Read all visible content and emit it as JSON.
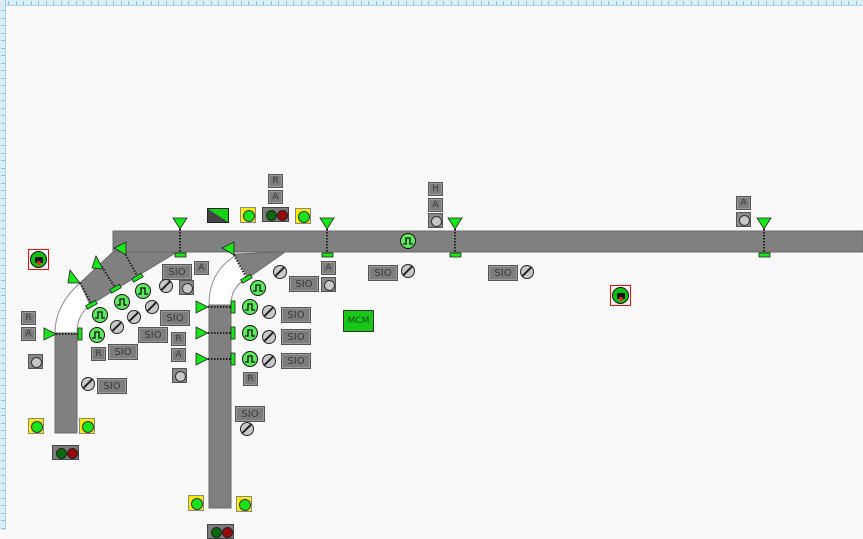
{
  "labels": {
    "sio": "SIO",
    "auto": "A",
    "reset": "R",
    "hand": "H",
    "mcm": "MCM"
  },
  "colors": {
    "conveyor": "#808080",
    "sensor_active": "#19e619",
    "beacon_yellow": "#ffea00",
    "light_green": "#0a6a0a",
    "light_red": "#9a0a0a",
    "camera_border": "#ff0000",
    "mcm": "#18c818"
  },
  "icons": [
    "photo-eye-sensor-icon",
    "motor-pulse-icon",
    "disconnect-switch-icon",
    "beacon-icon",
    "stack-light-icon",
    "camera-icon",
    "jam-indicator-icon",
    "status-lamp-icon"
  ]
}
